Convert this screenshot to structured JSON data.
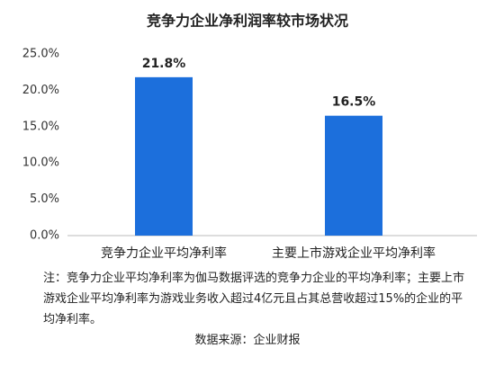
{
  "chart_data": {
    "type": "bar",
    "title": "竞争力企业净利润率较市场状况",
    "categories": [
      "竞争力企业平均净利率",
      "主要上市游戏企业平均净利率"
    ],
    "values": [
      21.8,
      16.5
    ],
    "value_labels": [
      "21.8%",
      "16.5%"
    ],
    "color": "#1c6fdc",
    "ylim": [
      0,
      25
    ],
    "yticks": [
      {
        "value": 0,
        "label": "0.0%"
      },
      {
        "value": 5,
        "label": "5.0%"
      },
      {
        "value": 10,
        "label": "10.0%"
      },
      {
        "value": 15,
        "label": "15.0%"
      },
      {
        "value": 20,
        "label": "20.0%"
      },
      {
        "value": 25,
        "label": "25.0%"
      }
    ],
    "grid": false,
    "note": "注：竞争力企业平均净利率为伽马数据评选的竞争力企业的平均净利率；主要上市游戏企业平均净利率为游戏业务收入超过4亿元且占其总营收超过15%的企业的平均净利率。",
    "source": "数据来源：企业财报"
  }
}
